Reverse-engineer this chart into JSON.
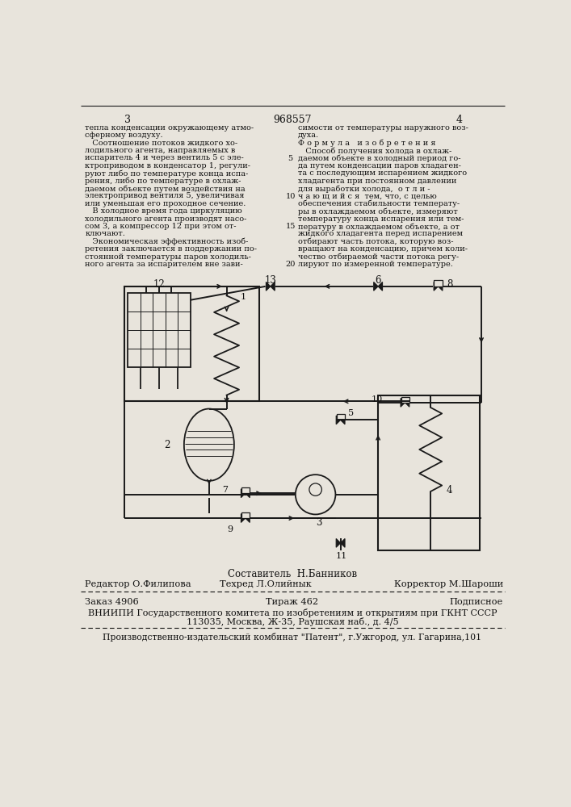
{
  "page_width": 7.07,
  "page_height": 10.0,
  "bg_color": "#e8e4dc",
  "text_color": "#111111",
  "patent_number": "968557",
  "col_left_header": "3",
  "col_right_header": "4",
  "left_column_text": [
    "тепла конденсации окружающему атмо-",
    "сферному воздуху.",
    "   Соотношение потоков жидкого хо-",
    "лодильного агента, направляемых в",
    "испаритель 4 и через вентиль 5 с эле-",
    "ктроприводом в конденсатор 1, регули-",
    "руют либо по температуре конца испа-",
    "рения, либо по температуре в охлаж-",
    "даемом объекте путем воздействия на",
    "электропривод вентиля 5, увеличивая",
    "или уменьшая его проходное сечение.",
    "   В холодное время года циркуляцию",
    "холодильного агента производят насо-",
    "сом 3, а компрессор 12 при этом от-",
    "ключают.",
    "   Экономическая эффективность изоб-",
    "ретения заключается в поддержании по-",
    "стоянной температуры паров холодиль-",
    "ного агента за испарителем вне зави-"
  ],
  "right_column_text": [
    "симости от температуры наружного воз-",
    "духа.",
    "Ф о р м у л а   и з о б р е т е н и я",
    "   Способ получения холода в охлаж-",
    "даемом объекте в холодный период го-",
    "да путем конденсации паров хладаген-",
    "та с последующим испарением жидкого",
    "хладагента при постоянном давлении",
    "для выработки холода,  о т л и -",
    "ч а ю щ и й с я  тем, что, с целью",
    "обеспечения стабильности температу-",
    "ры в охлаждаемом объекте, измеряют",
    "температуру конца испарения или тем-",
    "пературу в охлаждаемом объекте, а от",
    "жидкого хладагента перед испарением",
    "отбирают часть потока, которую воз-",
    "вращают на конденсацию, причем коли-",
    "чество отбираемой части потока регу-",
    "лируют по измеренной температуре."
  ],
  "footer_line1_center": "Составитель  Н.Банников",
  "footer_line2_left": "Редактор О.Филипова",
  "footer_line2_center": "Техред Л.Олийнык",
  "footer_line2_right": "Корректор М.Шароши",
  "footer_order": "Заказ 4906",
  "footer_tirazh": "Тираж 462",
  "footer_podpisnoe": "Подписное",
  "footer_vniipo": "ВНИИПИ Государственного комитета по изобретениям и открытиям при ГКНТ СССР",
  "footer_address": "113035, Москва, Ж-35, Раушская наб., д. 4/5",
  "footer_factory": "Производственно-издательский комбинат \"Патент\", г.Ужгород, ул. Гагарина,101"
}
